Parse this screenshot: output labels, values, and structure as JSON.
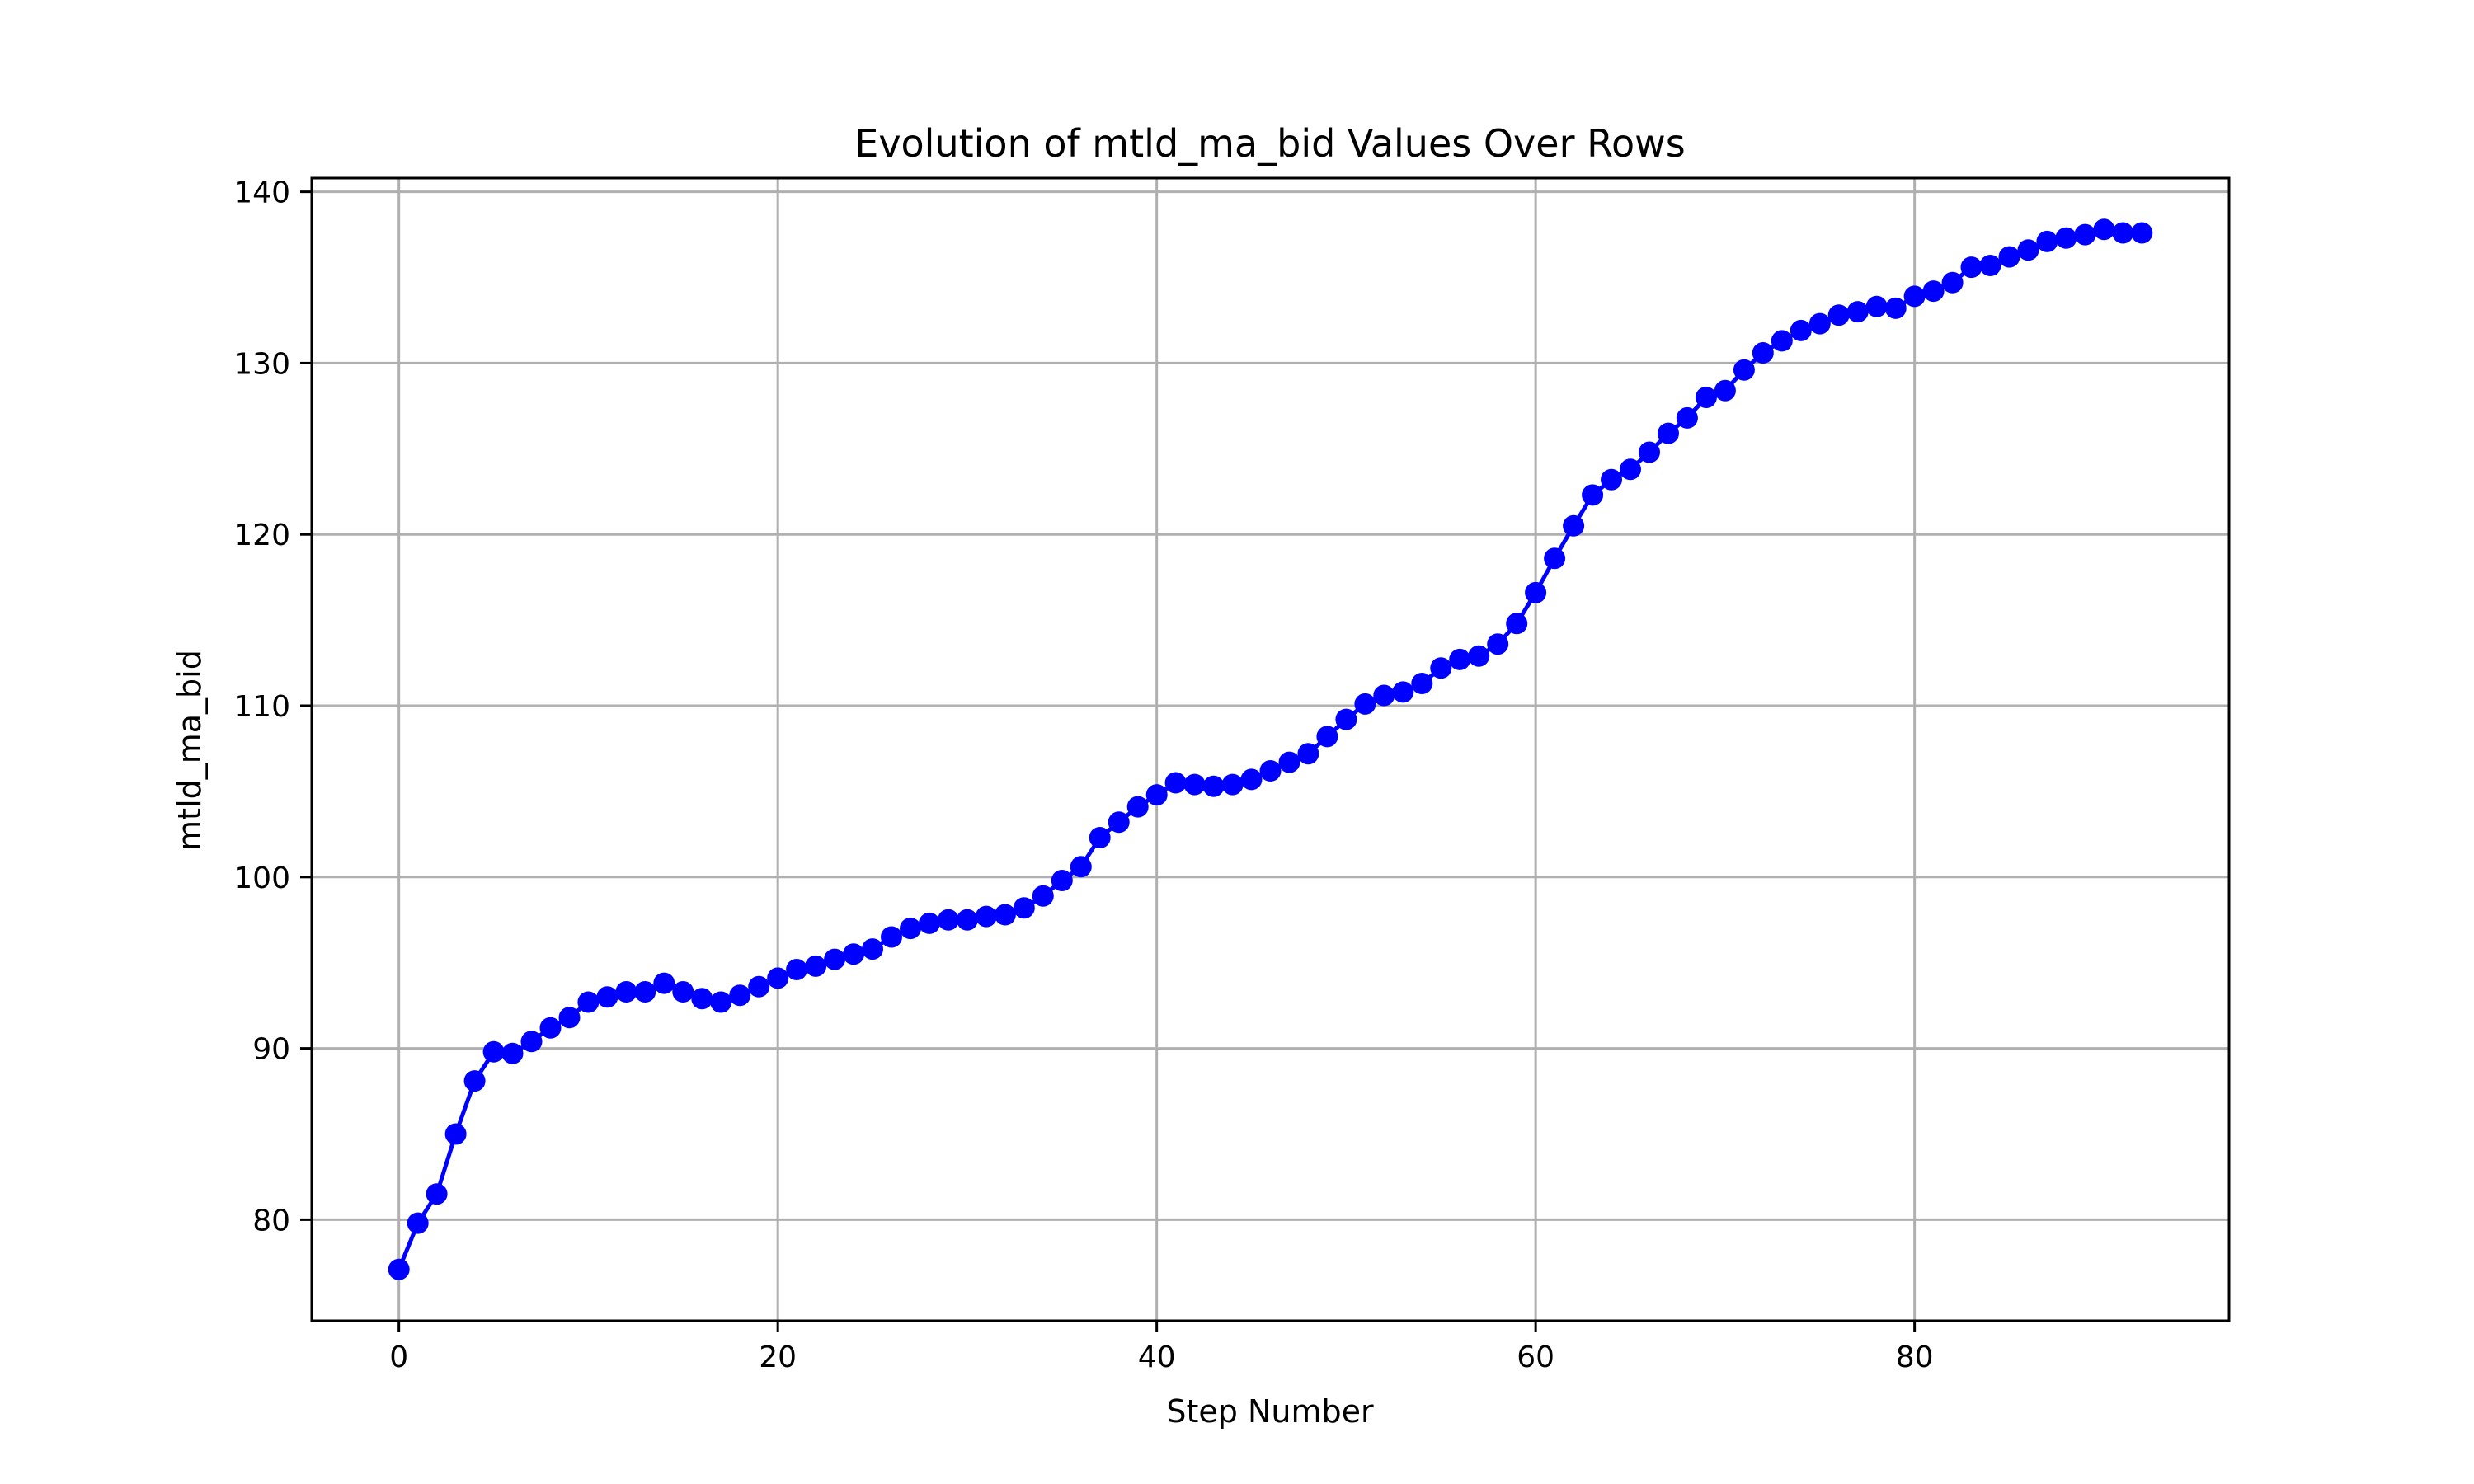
{
  "chart_data": {
    "type": "line",
    "title": "Evolution of mtld_ma_bid Values Over Rows",
    "xlabel": "Step Number",
    "ylabel": "mtld_ma_bid",
    "xlim": [
      -4.6,
      96.6
    ],
    "ylim": [
      74.1,
      140.8
    ],
    "xticks": [
      0,
      20,
      40,
      60,
      80
    ],
    "yticks": [
      80,
      90,
      100,
      110,
      120,
      130,
      140
    ],
    "grid": true,
    "legend": "none",
    "series": [
      {
        "color": "#0000ff",
        "marker": "circle",
        "x": [
          0,
          1,
          2,
          3,
          4,
          5,
          6,
          7,
          8,
          9,
          10,
          11,
          12,
          13,
          14,
          15,
          16,
          17,
          18,
          19,
          20,
          21,
          22,
          23,
          24,
          25,
          26,
          27,
          28,
          29,
          30,
          31,
          32,
          33,
          34,
          35,
          36,
          37,
          38,
          39,
          40,
          41,
          42,
          43,
          44,
          45,
          46,
          47,
          48,
          49,
          50,
          51,
          52,
          53,
          54,
          55,
          56,
          57,
          58,
          59,
          60,
          61,
          62,
          63,
          64,
          65,
          66,
          67,
          68,
          69,
          70,
          71,
          72,
          73,
          74,
          75,
          76,
          77,
          78,
          79,
          80,
          81,
          82,
          83,
          84,
          85,
          86,
          87,
          88,
          89,
          90,
          91,
          92
        ],
        "y": [
          77.1,
          79.8,
          81.5,
          85.0,
          88.1,
          89.8,
          89.7,
          90.4,
          91.2,
          91.8,
          92.7,
          93.0,
          93.3,
          93.3,
          93.8,
          93.3,
          92.9,
          92.7,
          93.1,
          93.6,
          94.1,
          94.6,
          94.8,
          95.2,
          95.5,
          95.8,
          96.5,
          97.0,
          97.3,
          97.5,
          97.5,
          97.7,
          97.8,
          98.2,
          98.9,
          99.8,
          100.6,
          102.3,
          103.2,
          104.1,
          104.8,
          105.5,
          105.4,
          105.3,
          105.4,
          105.7,
          106.2,
          106.7,
          107.2,
          108.2,
          109.2,
          110.1,
          110.6,
          110.8,
          111.3,
          112.2,
          112.7,
          112.9,
          113.6,
          114.8,
          116.6,
          118.6,
          120.5,
          122.3,
          123.2,
          123.8,
          124.8,
          125.9,
          126.8,
          128.0,
          128.4,
          129.6,
          130.6,
          131.3,
          131.9,
          132.3,
          132.8,
          133.0,
          133.3,
          133.2,
          133.9,
          134.2,
          134.7,
          135.6,
          135.7,
          136.2,
          136.6,
          137.1,
          137.3,
          137.5,
          137.8,
          137.6,
          137.6
        ]
      }
    ]
  }
}
